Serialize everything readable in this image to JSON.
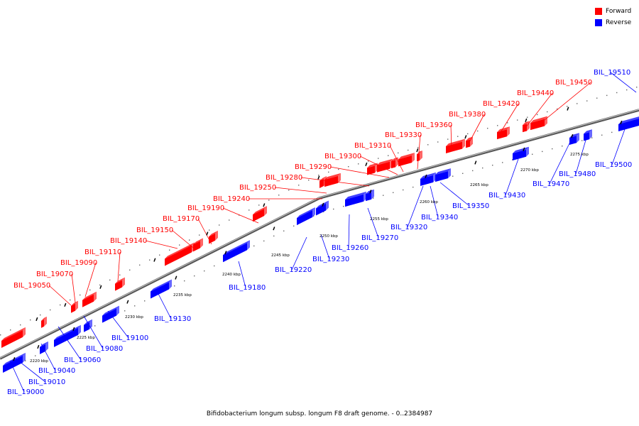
{
  "legend": {
    "forward": {
      "label": "Forward",
      "color": "#ff0000"
    },
    "reverse": {
      "label": "Reverse",
      "color": "#0000ff"
    }
  },
  "caption": "Bifidobacterium longum subsp. longum F8 draft genome. - 0..2384987",
  "scale_labels": [
    "2220 kbp",
    "2225 kbp",
    "2230 kbp",
    "2235 kbp",
    "2240 kbp",
    "2245 kbp",
    "2250 kbp",
    "2255 kbp",
    "2260 kbp",
    "2265 kbp",
    "2270 kbp",
    "2275 kbp"
  ],
  "genes_forward": [
    "BIL_19050",
    "BIL_19070",
    "BIL_19090",
    "BIL_19110",
    "BIL_19140",
    "BIL_19150",
    "BIL_19170",
    "BIL_19190",
    "BIL_19240",
    "BIL_19250",
    "BIL_19280",
    "BIL_19290",
    "BIL_19300",
    "BIL_19310",
    "BIL_19330",
    "BIL_19360",
    "BIL_19380",
    "BIL_19420",
    "BIL_19440",
    "BIL_19450"
  ],
  "genes_reverse": [
    "BIL_19000",
    "BIL_19010",
    "BIL_19040",
    "BIL_19060",
    "BIL_19080",
    "BIL_19100",
    "BIL_19130",
    "BIL_19180",
    "BIL_19220",
    "BIL_19230",
    "BIL_19260",
    "BIL_19270",
    "BIL_19320",
    "BIL_19340",
    "BIL_19350",
    "BIL_19430",
    "BIL_19470",
    "BIL_19480",
    "BIL_19500",
    "BIL_19510"
  ]
}
